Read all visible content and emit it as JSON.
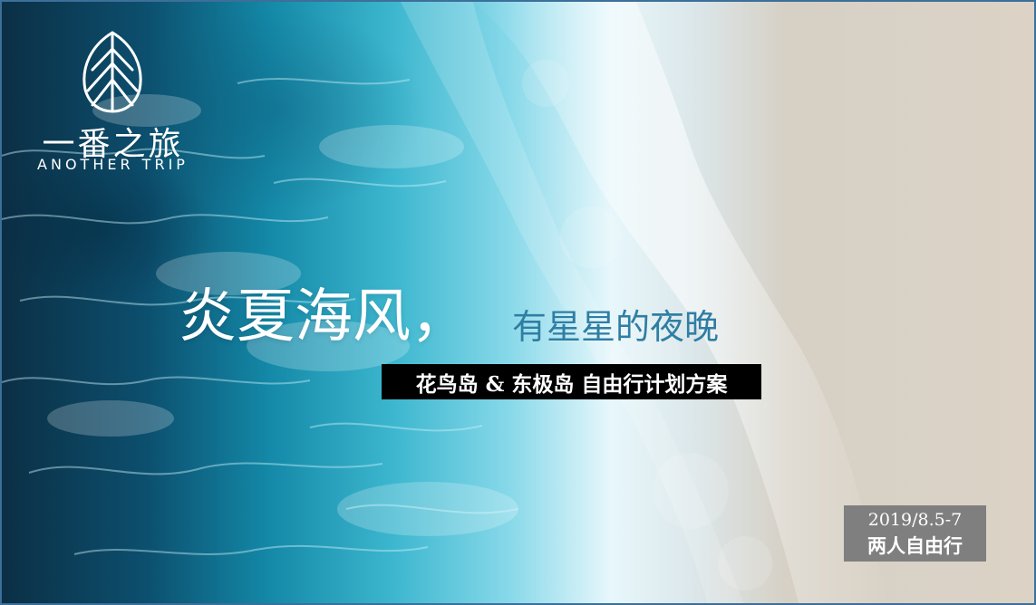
{
  "brand": {
    "name_cn": "一番之旅",
    "name_en": "ANOTHER TRIP",
    "icon": "leaf-icon"
  },
  "title": {
    "main": "炎夏海风，",
    "sub": "有星星的夜晚"
  },
  "banner": {
    "text": "花鸟岛 & 东极岛 自由行计划方案"
  },
  "trip": {
    "date": "2019/8.5-7",
    "type": "两人自由行"
  },
  "colors": {
    "ocean_dark": "#0b2f45",
    "ocean_mid": "#1489a8",
    "foam": "#e7f7fb",
    "sand": "#dcd3c6",
    "banner_bg": "#000000",
    "date_bg": "#7f7f7f",
    "subtitle": "#2f7ea4"
  }
}
